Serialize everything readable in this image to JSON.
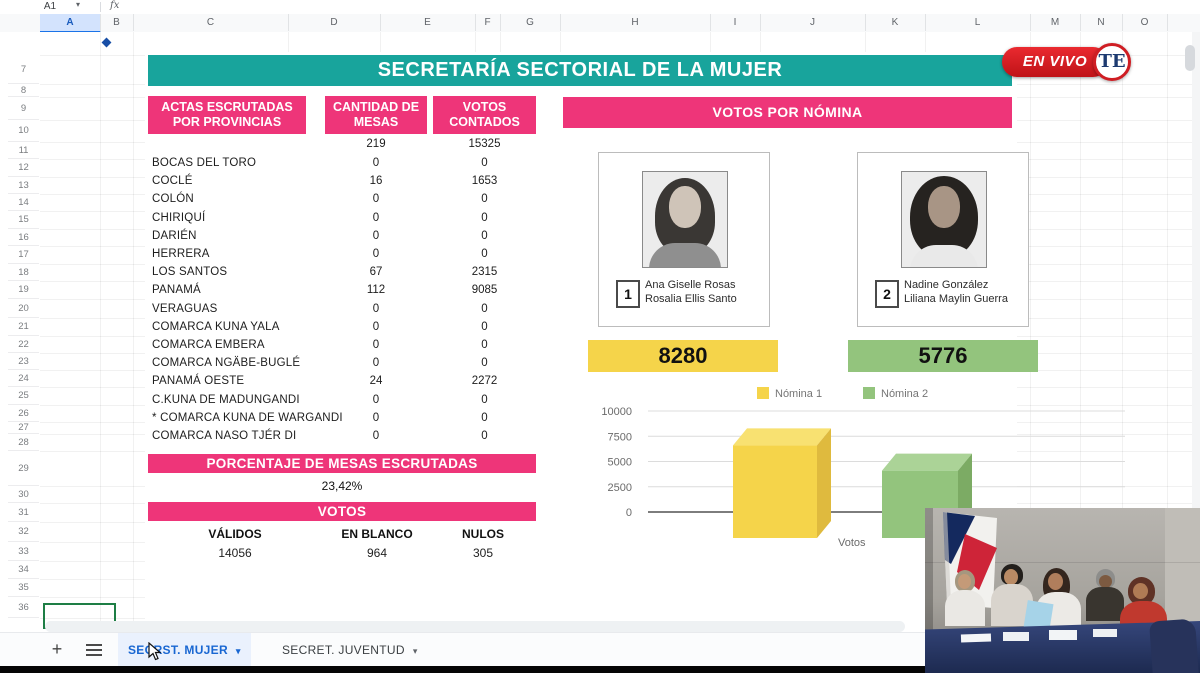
{
  "app": {
    "name_box": "A1",
    "fx_label": "fx",
    "columns": [
      "A",
      "B",
      "C",
      "D",
      "E",
      "F",
      "G",
      "H",
      "I",
      "J",
      "K",
      "L",
      "M",
      "N",
      "O"
    ],
    "rows": [
      "7",
      "8",
      "9",
      "10",
      "11",
      "12",
      "13",
      "14",
      "15",
      "16",
      "17",
      "18",
      "19",
      "20",
      "21",
      "22",
      "23",
      "24",
      "25",
      "26",
      "27",
      "28",
      "29",
      "30",
      "31",
      "32",
      "33",
      "34",
      "35",
      "36"
    ],
    "icons": {
      "caret_down": "▾",
      "plus": "+"
    },
    "tabs": [
      {
        "label": "SECRST. MUJER",
        "active": true
      },
      {
        "label": "SECRET. JUVENTUD",
        "active": false
      }
    ]
  },
  "banner": {
    "title": "SECRETARÍA SECTORIAL DE LA MUJER"
  },
  "actas": {
    "header_col1_line1": "ACTAS ESCRUTADAS",
    "header_col1_line2": "POR PROVINCIAS",
    "header_col2_line1": "CANTIDAD DE",
    "header_col2_line2": "MESAS",
    "header_col3_line1": "VOTOS",
    "header_col3_line2": "CONTADOS",
    "totals": {
      "mesas": "219",
      "votos": "15325"
    },
    "rows": [
      {
        "province": "BOCAS DEL TORO",
        "mesas": "0",
        "votos": "0"
      },
      {
        "province": "COCLÉ",
        "mesas": "16",
        "votos": "1653"
      },
      {
        "province": "COLÓN",
        "mesas": "0",
        "votos": "0"
      },
      {
        "province": "CHIRIQUÍ",
        "mesas": "0",
        "votos": "0"
      },
      {
        "province": "DARIÉN",
        "mesas": "0",
        "votos": "0"
      },
      {
        "province": "HERRERA",
        "mesas": "0",
        "votos": "0"
      },
      {
        "province": "LOS SANTOS",
        "mesas": "67",
        "votos": "2315"
      },
      {
        "province": "PANAMÁ",
        "mesas": "112",
        "votos": "9085"
      },
      {
        "province": "VERAGUAS",
        "mesas": "0",
        "votos": "0"
      },
      {
        "province": "COMARCA KUNA YALA",
        "mesas": "0",
        "votos": "0"
      },
      {
        "province": "COMARCA EMBERA",
        "mesas": "0",
        "votos": "0"
      },
      {
        "province": "COMARCA NGÄBE-BUGLÉ",
        "mesas": "0",
        "votos": "0"
      },
      {
        "province": "PANAMÁ OESTE",
        "mesas": "24",
        "votos": "2272"
      },
      {
        "province": "C.KUNA DE MADUNGANDI",
        "mesas": "0",
        "votos": "0"
      },
      {
        "province": "* COMARCA KUNA DE WARGANDI",
        "mesas": "0",
        "votos": "0"
      },
      {
        "province": "COMARCA NASO TJÉR DI",
        "mesas": "0",
        "votos": "0"
      }
    ]
  },
  "porcentaje": {
    "header": "PORCENTAJE DE MESAS ESCRUTADAS",
    "value": "23,42%"
  },
  "votos": {
    "header": "VOTOS",
    "cols": [
      {
        "label": "VÁLIDOS",
        "value": "14056"
      },
      {
        "label": "EN BLANCO",
        "value": "964"
      },
      {
        "label": "NULOS",
        "value": "305"
      }
    ]
  },
  "nomina": {
    "header": "VOTOS POR NÓMINA",
    "cards": [
      {
        "number": "1",
        "name1": "Ana Giselle Rosas",
        "name2": "Rosalia Ellis Santo",
        "total": "8280"
      },
      {
        "number": "2",
        "name1": "Nadine González",
        "name2": "Liliana Maylin Guerra",
        "total": "5776"
      }
    ]
  },
  "chart_data": {
    "type": "bar",
    "style": "3d-column",
    "categories": [
      "Votos"
    ],
    "series": [
      {
        "name": "Nómina 1",
        "values": [
          8280
        ],
        "color": "#f5d44a"
      },
      {
        "name": "Nómina 2",
        "values": [
          5776
        ],
        "color": "#93c47d"
      }
    ],
    "ylim": [
      0,
      10000
    ],
    "yticks": [
      "10000",
      "7500",
      "5000",
      "2500",
      "0"
    ],
    "xlabel": "Votos",
    "legend": [
      "Nómina 1",
      "Nómina 2"
    ],
    "legend_position": "top",
    "grid": true
  },
  "overlay": {
    "live": "EN VIVO",
    "logo": "TE"
  },
  "colors": {
    "teal": "#18a49c",
    "pink": "#ee3579",
    "yellow": "#f5d44a",
    "green": "#93c47d",
    "live_red": "#cf1d23",
    "tab_blue": "#1967d2"
  }
}
